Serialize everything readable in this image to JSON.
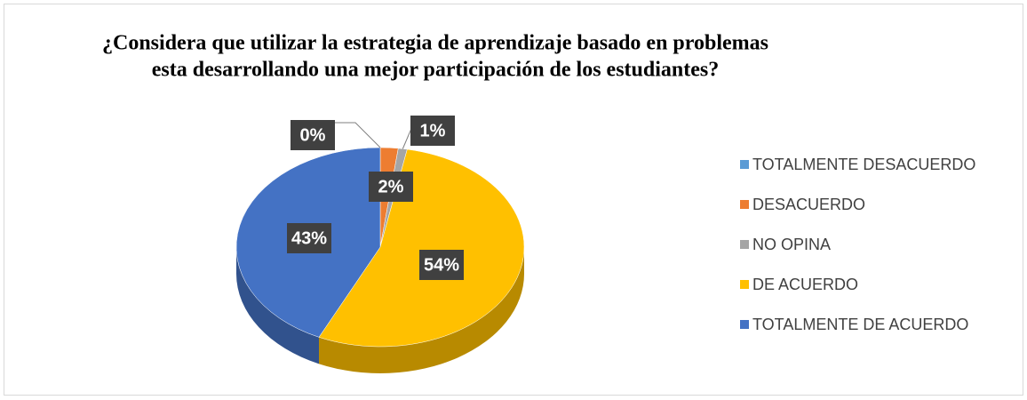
{
  "chart_data": {
    "type": "pie",
    "title": "¿Considera que utilizar la estrategia de aprendizaje basado en problemas esta desarrollando una mejor participación de los estudiantes?",
    "title_lines": [
      "¿Considera que utilizar la estrategia de aprendizaje basado en problemas",
      "esta desarrollando una mejor participación de los estudiantes?"
    ],
    "categories": [
      "TOTALMENTE DESACUERDO",
      "DESACUERDO",
      "NO OPINA",
      "DE ACUERDO",
      "TOTALMENTE DE ACUERDO"
    ],
    "values": [
      0,
      2,
      1,
      54,
      43
    ],
    "value_labels": [
      "0%",
      "2%",
      "1%",
      "54%",
      "43%"
    ],
    "colors": [
      "#5b9bd5",
      "#ed7d31",
      "#a5a5a5",
      "#ffc000",
      "#4472c4"
    ],
    "legend": "right"
  }
}
